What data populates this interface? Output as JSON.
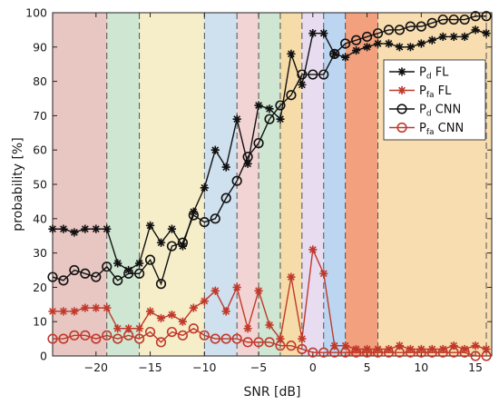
{
  "chart_data": {
    "type": "line",
    "xlabel": "SNR [dB]",
    "ylabel": "probability [%]",
    "xlim": [
      -24,
      16.5
    ],
    "ylim": [
      0,
      100
    ],
    "grid": false,
    "legend_position": "top-right",
    "x_ticks": [
      -20,
      -15,
      -10,
      -5,
      0,
      5,
      10,
      15
    ],
    "x_tick_labels": [
      "−20",
      "−15",
      "−10",
      "−5",
      "0",
      "5",
      "10",
      "15"
    ],
    "y_ticks": [
      0,
      10,
      20,
      30,
      40,
      50,
      60,
      70,
      80,
      90,
      100
    ],
    "y_tick_labels": [
      "0",
      "10",
      "20",
      "30",
      "40",
      "50",
      "60",
      "70",
      "80",
      "90",
      "100"
    ],
    "x": [
      -24,
      -23,
      -22,
      -21,
      -20,
      -19,
      -18,
      -17,
      -16,
      -15,
      -14,
      -13,
      -12,
      -11,
      -10,
      -9,
      -8,
      -7,
      -6,
      -5,
      -4,
      -3,
      -2,
      -1,
      0,
      1,
      2,
      3,
      4,
      5,
      6,
      7,
      8,
      9,
      10,
      11,
      12,
      13,
      14,
      15,
      16
    ],
    "series": [
      {
        "name": "P_d FL",
        "legend_main": "P",
        "legend_sub": "d",
        "legend_rest": " FL",
        "color": "#111111",
        "marker": "star",
        "values": [
          37,
          37,
          36,
          37,
          37,
          37,
          27,
          25,
          27,
          38,
          33,
          37,
          32,
          42,
          49,
          60,
          55,
          69,
          56,
          73,
          72,
          69,
          88,
          79,
          94,
          94,
          88,
          87,
          89,
          90,
          91,
          91,
          90,
          90,
          91,
          92,
          93,
          93,
          93,
          95,
          94
        ]
      },
      {
        "name": "P_fa FL",
        "legend_main": "P",
        "legend_sub": "fa",
        "legend_rest": " FL",
        "color": "#c0392b",
        "marker": "star",
        "values": [
          13,
          13,
          13,
          14,
          14,
          14,
          8,
          8,
          8,
          13,
          11,
          12,
          10,
          14,
          16,
          19,
          13,
          20,
          8,
          19,
          9,
          5,
          23,
          5,
          31,
          24,
          3,
          3,
          2,
          2,
          2,
          2,
          3,
          2,
          2,
          2,
          2,
          3,
          2,
          3,
          2
        ]
      },
      {
        "name": "P_d CNN",
        "legend_main": "P",
        "legend_sub": "d",
        "legend_rest": " CNN",
        "color": "#111111",
        "marker": "circle",
        "values": [
          23,
          22,
          25,
          24,
          23,
          26,
          22,
          24,
          24,
          28,
          21,
          32,
          33,
          41,
          39,
          40,
          46,
          51,
          58,
          62,
          69,
          73,
          76,
          82,
          82,
          82,
          88,
          91,
          92,
          93,
          94,
          95,
          95,
          96,
          96,
          97,
          98,
          98,
          98,
          99,
          99
        ]
      },
      {
        "name": "P_fa CNN",
        "legend_main": "P",
        "legend_sub": "fa",
        "legend_rest": " CNN",
        "color": "#c0392b",
        "marker": "circle",
        "values": [
          5,
          5,
          6,
          6,
          5,
          6,
          5,
          6,
          5,
          7,
          4,
          7,
          6,
          8,
          6,
          5,
          5,
          5,
          4,
          4,
          4,
          3,
          3,
          2,
          1,
          1,
          1,
          1,
          1,
          1,
          1,
          1,
          1,
          1,
          1,
          1,
          1,
          1,
          1,
          0,
          0
        ]
      }
    ],
    "background_bands": [
      {
        "x0": -24,
        "x1": -19,
        "color": "#e8c6c2"
      },
      {
        "x0": -19,
        "x1": -16,
        "color": "#cfe6d2"
      },
      {
        "x0": -16,
        "x1": -10,
        "color": "#f6edc9"
      },
      {
        "x0": -10,
        "x1": -7,
        "color": "#cfe0ee"
      },
      {
        "x0": -7,
        "x1": -5,
        "color": "#f3d4d4"
      },
      {
        "x0": -5,
        "x1": -3,
        "color": "#cfe6d2"
      },
      {
        "x0": -3,
        "x1": -1,
        "color": "#f6dca8"
      },
      {
        "x0": -1,
        "x1": 1,
        "color": "#e7dcf0"
      },
      {
        "x0": 1,
        "x1": 3,
        "color": "#bcd6f2"
      },
      {
        "x0": 3,
        "x1": 6,
        "color": "#f2a07e"
      },
      {
        "x0": 6,
        "x1": 16.5,
        "color": "#f8ddb0"
      }
    ],
    "dashed_lines_x": [
      -19,
      -16,
      -10,
      -7,
      -5,
      -3,
      -1,
      1,
      3,
      6,
      16
    ]
  }
}
